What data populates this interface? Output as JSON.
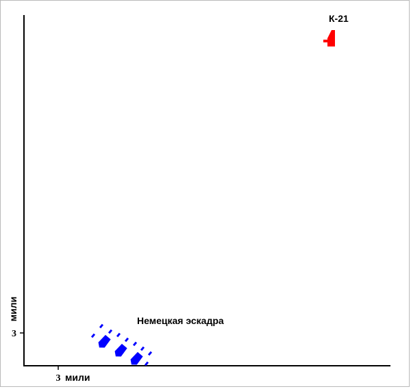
{
  "labels": {
    "submarine": "К-21",
    "squadron": "Немецкая эскадра",
    "x_tick": "3",
    "x_unit": "мили",
    "y_tick": "3",
    "y_unit": "мили"
  },
  "colors": {
    "submarine": "#ff0000",
    "squadron": "#0000ff",
    "axes": "#000000",
    "frame": "#b9b9b9"
  }
}
